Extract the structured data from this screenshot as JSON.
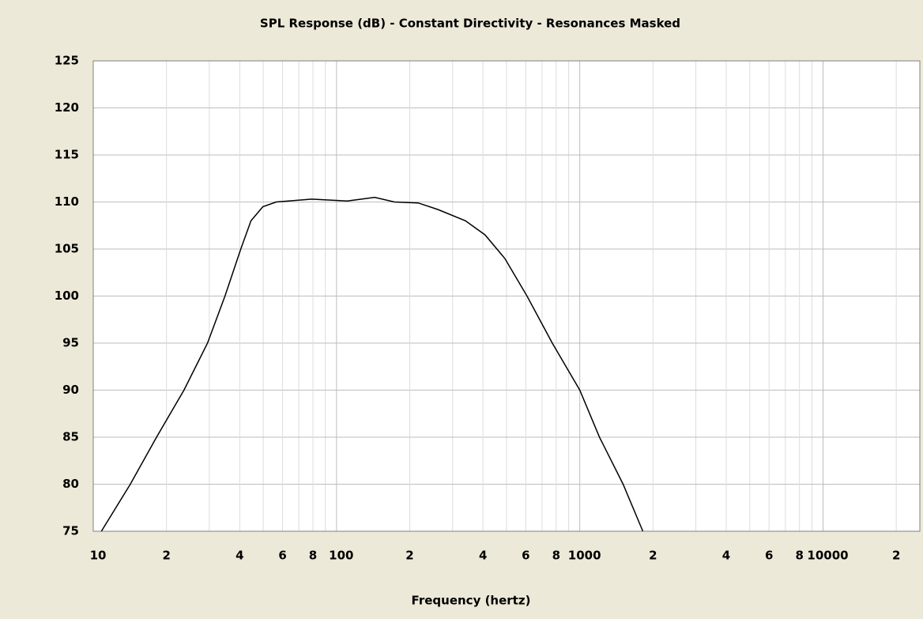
{
  "chart_data": {
    "type": "line",
    "title": "SPL Response (dB) - Constant Directivity - Resonances Masked",
    "x_label": "Frequency (hertz)",
    "log_x": true,
    "grid": true,
    "xlim": [
      10,
      25000
    ],
    "ylim": [
      75,
      125
    ],
    "xticks": [
      10,
      {
        "value": 20,
        "label": "2"
      },
      {
        "value": 40,
        "label": "4"
      },
      {
        "value": 60,
        "label": "6"
      },
      {
        "value": 80,
        "label": "8"
      },
      100,
      {
        "value": 200,
        "label": "2"
      },
      {
        "value": 400,
        "label": "4"
      },
      {
        "value": 600,
        "label": "6"
      },
      {
        "value": 800,
        "label": "8"
      },
      1000,
      {
        "value": 2000,
        "label": "2"
      },
      {
        "value": 4000,
        "label": "4"
      },
      {
        "value": 6000,
        "label": "6"
      },
      {
        "value": 8000,
        "label": "8"
      },
      10000,
      {
        "value": 20000,
        "label": "2"
      }
    ],
    "xminor": [
      30,
      50,
      70,
      90,
      300,
      500,
      700,
      900,
      3000,
      5000,
      7000,
      9000
    ],
    "yticks": [
      75,
      80,
      85,
      90,
      95,
      100,
      105,
      110,
      115,
      120,
      125
    ],
    "series": [
      {
        "name": "SPL",
        "color": "#000000",
        "x": [
          10.8,
          14.2,
          18.2,
          23.6,
          29.5,
          34.8,
          40.4,
          44.5,
          49.8,
          56.5,
          79,
          110.7,
          143.6,
          173,
          216.6,
          261,
          339,
          408,
          492,
          607,
          771,
          1000,
          1205,
          1507,
          1817
        ],
        "values": [
          75,
          80,
          85,
          90,
          95,
          100,
          105,
          108,
          109.5,
          110,
          110.3,
          110.1,
          110.5,
          110,
          109.9,
          109.2,
          108,
          106.5,
          104,
          100,
          95,
          90,
          85,
          80,
          75
        ]
      }
    ]
  }
}
